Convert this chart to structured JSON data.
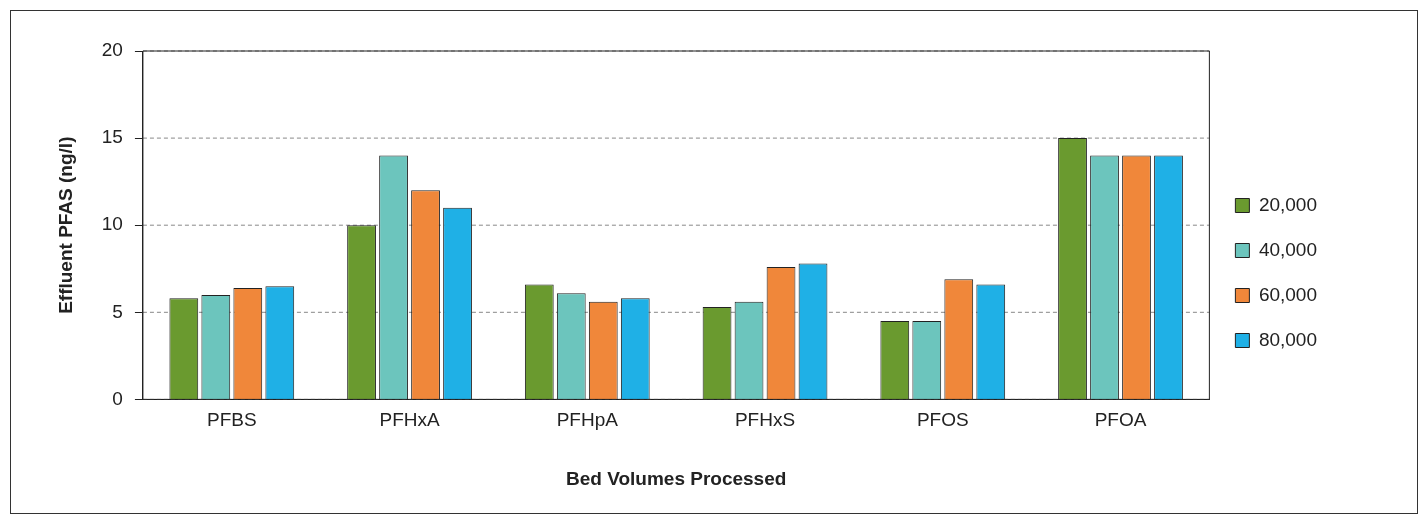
{
  "chart_data": {
    "type": "bar",
    "xlabel": "Bed Volumes Processed",
    "ylabel": "Effluent PFAS (ng/l)",
    "categories": [
      "PFBS",
      "PFHxA",
      "PFHpA",
      "PFHxS",
      "PFOS",
      "PFOA"
    ],
    "series": [
      {
        "name": "20,000",
        "color": "#6a9a2f",
        "values": [
          5.8,
          10,
          6.6,
          5.3,
          4.5,
          15
        ]
      },
      {
        "name": "40,000",
        "color": "#6cc5bd",
        "values": [
          6.0,
          14,
          6.1,
          5.6,
          4.5,
          14
        ]
      },
      {
        "name": "60,000",
        "color": "#f0873a",
        "values": [
          6.4,
          12,
          5.6,
          7.6,
          6.9,
          14
        ]
      },
      {
        "name": "80,000",
        "color": "#1fb0e6",
        "values": [
          6.5,
          11,
          5.8,
          7.8,
          6.6,
          14
        ]
      }
    ],
    "ylim": [
      0,
      20
    ],
    "yticks": [
      0,
      5,
      10,
      15,
      20
    ],
    "grid": "y",
    "legend": "right"
  }
}
